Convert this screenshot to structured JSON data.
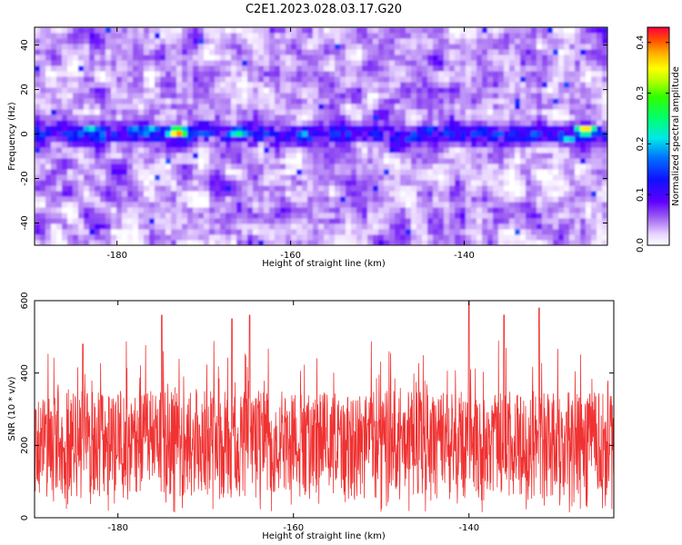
{
  "title": "C2E1.2023.028.03.17.G20",
  "chart_data": [
    {
      "type": "heatmap",
      "xlabel": "Height of straight line (km)",
      "ylabel": "Frequency (Hz)",
      "xlim": [
        -189.5,
        -123.5
      ],
      "ylim": [
        -50,
        48
      ],
      "xticks": [
        -180,
        -160,
        -140
      ],
      "yticks": [
        -40,
        -20,
        0,
        20,
        40
      ],
      "colorbar": {
        "label": "Normalized spectral amplitude",
        "range": [
          0.0,
          0.43
        ],
        "ticks": [
          0.0,
          0.1,
          0.2,
          0.3,
          0.4
        ],
        "colormap": "rainbow (white → violet → blue → cyan → green → yellow → red)"
      },
      "features": "Mostly low-amplitude violet/purple noise (~0.02–0.08) across all frequencies; a horizontal band of higher amplitude (0.1–0.43) concentrated near 0 Hz spanning the full height range, with peaks near -173 km and -126 km."
    },
    {
      "type": "line",
      "color": "#f03232",
      "xlabel": "Height of straight line (km)",
      "ylabel": "SNR (10 * v/v)",
      "xlim": [
        -189.5,
        -123.5
      ],
      "ylim": [
        0,
        600
      ],
      "xticks": [
        -180,
        -160,
        -140
      ],
      "yticks": [
        0,
        200,
        400,
        600
      ],
      "typical_range": [
        50,
        350
      ],
      "peaks": [
        {
          "x": -184,
          "y": 480
        },
        {
          "x": -175,
          "y": 560
        },
        {
          "x": -167,
          "y": 550
        },
        {
          "x": -165,
          "y": 560
        },
        {
          "x": -140,
          "y": 600
        },
        {
          "x": -136,
          "y": 560
        },
        {
          "x": -132,
          "y": 580
        }
      ]
    }
  ]
}
